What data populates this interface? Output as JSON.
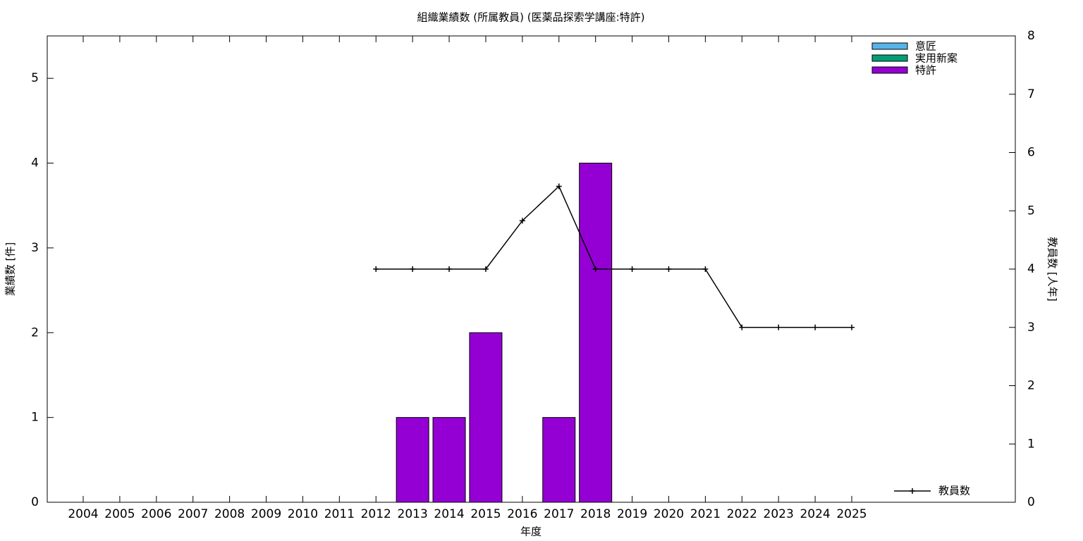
{
  "chart_data": {
    "type": "bar",
    "stacked": true,
    "title": "組織業績数 (所属教員) (医薬品探索学講座:特許)",
    "x_label": "年度",
    "y_label": "業績数 [件]",
    "y2_label": "教員数 [人年]",
    "categories": [
      "2004",
      "2005",
      "2006",
      "2007",
      "2008",
      "2009",
      "2010",
      "2011",
      "2012",
      "2013",
      "2014",
      "2015",
      "2016",
      "2017",
      "2018",
      "2019",
      "2020",
      "2021",
      "2022",
      "2023",
      "2024",
      "2025"
    ],
    "series": [
      {
        "name": "意匠",
        "color": "#56b4e9",
        "values": [
          0,
          0,
          0,
          0,
          0,
          0,
          0,
          0,
          0,
          0,
          0,
          0,
          0,
          0,
          0,
          0,
          0,
          0,
          0,
          0,
          0,
          0
        ]
      },
      {
        "name": "実用新案",
        "color": "#009e73",
        "values": [
          0,
          0,
          0,
          0,
          0,
          0,
          0,
          0,
          0,
          0,
          0,
          0,
          0,
          0,
          0,
          0,
          0,
          0,
          0,
          0,
          0,
          0
        ]
      },
      {
        "name": "特許",
        "color": "#9400d3",
        "values": [
          0,
          0,
          0,
          0,
          0,
          0,
          0,
          0,
          0,
          1,
          1,
          2,
          0,
          1,
          4,
          0,
          0,
          0,
          0,
          0,
          0,
          0
        ]
      },
      {
        "name": "教員数",
        "type": "line",
        "axis": "y2",
        "color": "#000000",
        "values": [
          null,
          null,
          null,
          null,
          null,
          null,
          null,
          null,
          4,
          4,
          4,
          4,
          4.83,
          5.42,
          4,
          4,
          4,
          4,
          3,
          3,
          3,
          3
        ]
      }
    ],
    "ylim": [
      0,
      5.5
    ],
    "yticks": [
      0,
      1,
      2,
      3,
      4,
      5
    ],
    "y2lim": [
      0,
      8
    ],
    "y2ticks": [
      0,
      1,
      2,
      3,
      4,
      5,
      6,
      7,
      8
    ],
    "legend": "top-right"
  }
}
